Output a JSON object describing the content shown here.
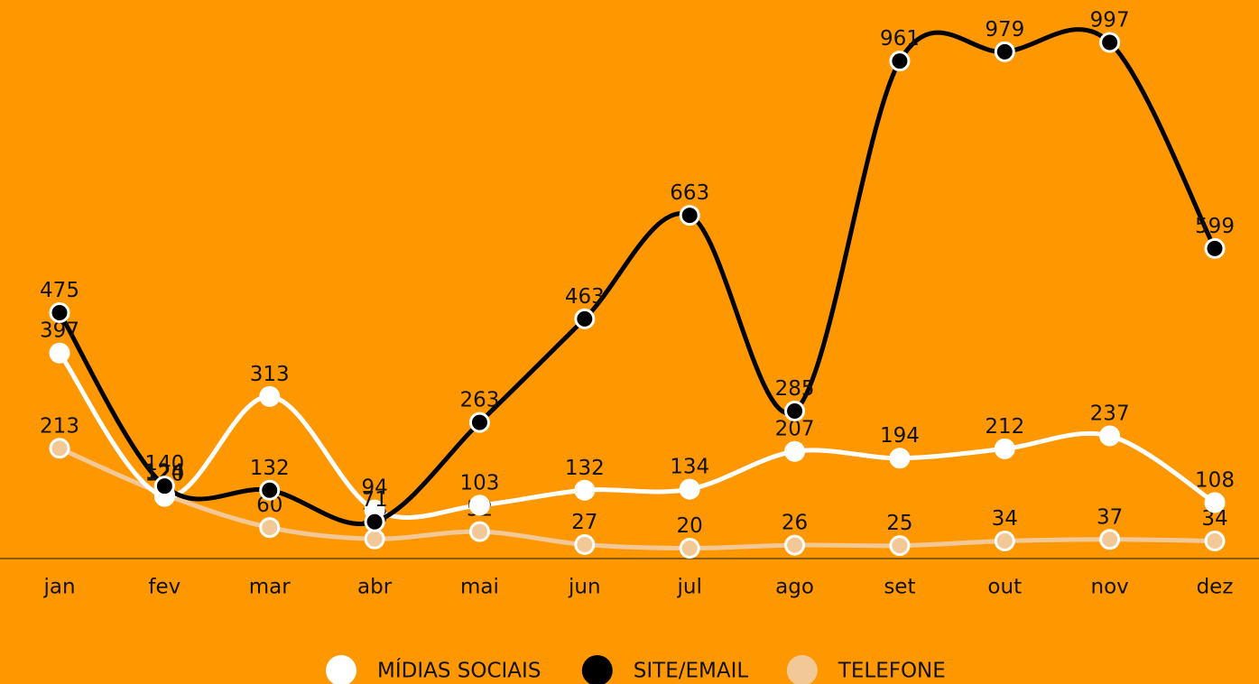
{
  "chart_data": {
    "type": "line",
    "categories": [
      "jan",
      "fev",
      "mar",
      "abr",
      "mai",
      "jun",
      "jul",
      "ago",
      "set",
      "out",
      "nov",
      "dez"
    ],
    "series": [
      {
        "name": "MÍDIAS SOCIAIS",
        "color": "#ffffff",
        "values": [
          397,
          120,
          313,
          94,
          103,
          132,
          134,
          207,
          194,
          212,
          237,
          108
        ]
      },
      {
        "name": "SITE/EMAIL",
        "color": "#000000",
        "values": [
          475,
          140,
          132,
          71,
          263,
          463,
          663,
          285,
          961,
          979,
          997,
          599
        ]
      },
      {
        "name": "TELEFONE",
        "color": "#f2c896",
        "values": [
          213,
          124,
          60,
          38,
          52,
          27,
          20,
          26,
          25,
          34,
          37,
          34
        ]
      }
    ],
    "ylim": [
      0,
      1000
    ],
    "legend": "bottom"
  }
}
